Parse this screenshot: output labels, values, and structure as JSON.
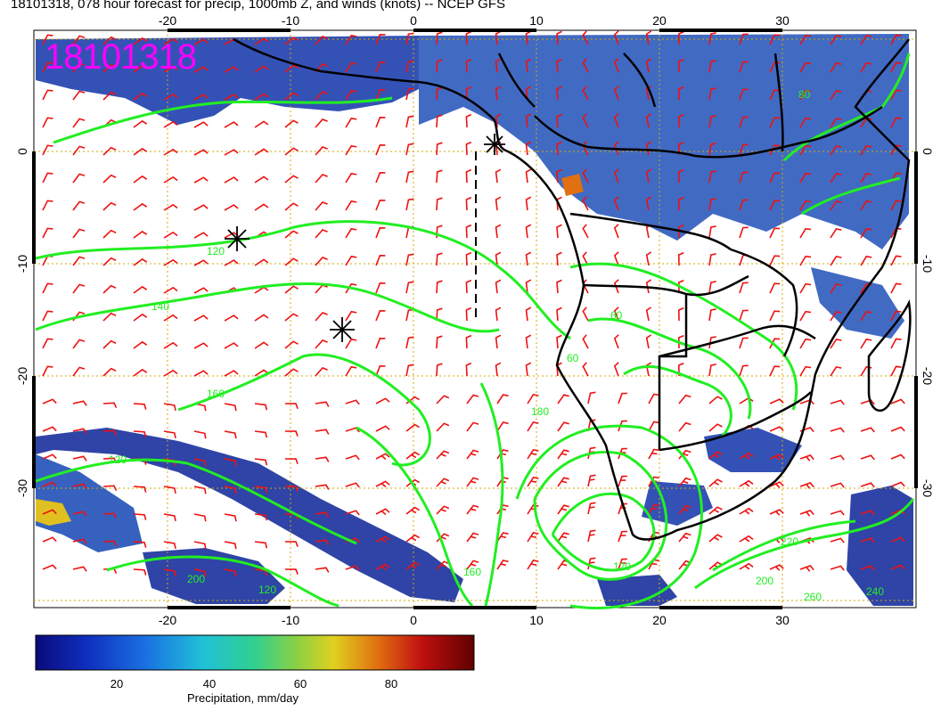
{
  "title": "18101318, 078 hour forecast for precip, 1000mb Z, and winds (knots) -- NCEP GFS",
  "stamp": "18101318",
  "map": {
    "lon_ticks": [
      "-20",
      "-10",
      "0",
      "10",
      "20",
      "30"
    ],
    "lat_ticks_left": [
      "0",
      "-10",
      "-20",
      "-30"
    ],
    "lat_ticks_right": [
      "0",
      "-10",
      "-20",
      "-30"
    ],
    "contour_labels": [
      "120",
      "140",
      "160",
      "120",
      "180",
      "160",
      "60",
      "120",
      "220",
      "200",
      "240",
      "120",
      "260",
      "200",
      "60",
      "80"
    ],
    "colors": {
      "contour": "#22ee22",
      "wind_barb": "#ee1111",
      "grid": "#d4aa00",
      "coast": "#000000"
    },
    "markers": [
      "asterisk",
      "asterisk",
      "asterisk"
    ]
  },
  "colorbar": {
    "ticks": [
      "20",
      "40",
      "60",
      "80"
    ],
    "label": "Precipitation, mm/day",
    "colors": [
      "#0a0a7a",
      "#1030c0",
      "#1a70e0",
      "#20c0d8",
      "#30d090",
      "#90d040",
      "#e0d020",
      "#e07010",
      "#c01010",
      "#600000"
    ]
  }
}
